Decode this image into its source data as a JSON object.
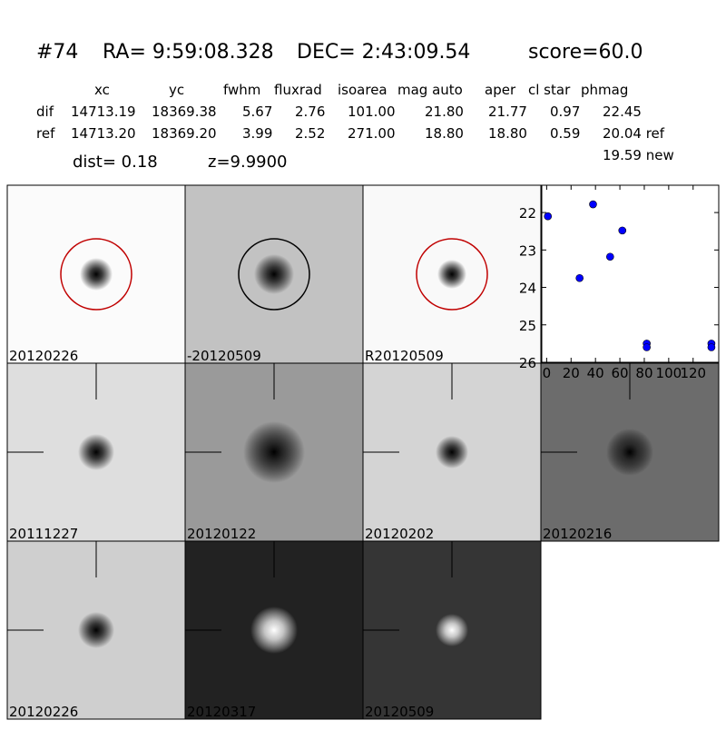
{
  "header": {
    "id": "#74",
    "ra": "RA= 9:59:08.328",
    "dec": "DEC= 2:43:09.54",
    "score": "score=60.0"
  },
  "table": {
    "columns": [
      "xc",
      "yc",
      "fwhm",
      "fluxrad",
      "isoarea",
      "mag auto",
      "aper",
      "cl star",
      "phmag"
    ],
    "rows": [
      [
        "dif",
        "14713.19",
        "18369.38",
        "5.67",
        "2.76",
        "101.00",
        "21.80",
        "21.77",
        "0.97",
        "22.45"
      ],
      [
        "ref",
        "14713.20",
        "18369.20",
        "3.99",
        "2.52",
        "271.00",
        "18.80",
        "18.80",
        "0.59",
        "20.04 ref"
      ]
    ],
    "extra": "19.59 new"
  },
  "dist": "dist=  0.18",
  "z": "z=9.9900",
  "stamps": [
    {
      "label": "20120226"
    },
    {
      "label": "-20120509"
    },
    {
      "label": "R20120509"
    },
    {
      "label": "20111227"
    },
    {
      "label": "20120122"
    },
    {
      "label": "20120202"
    },
    {
      "label": "20120216"
    },
    {
      "label": "20120226",
      "label_color": "#ff0000"
    },
    {
      "label": "20120317"
    },
    {
      "label": "20120509"
    }
  ],
  "chart_data": {
    "type": "scatter",
    "x": [
      1,
      27,
      38,
      52,
      62,
      82,
      82,
      135,
      135
    ],
    "values": [
      22.1,
      23.75,
      21.78,
      23.18,
      22.48,
      25.5,
      25.6,
      25.5,
      25.6
    ],
    "color": "#0000ff",
    "xlim": [
      -4,
      141
    ],
    "xticks": [
      0,
      20,
      40,
      60,
      80,
      100,
      120
    ],
    "ylim": [
      26,
      21.27
    ],
    "yticks": [
      22,
      23,
      24,
      25,
      26
    ]
  }
}
